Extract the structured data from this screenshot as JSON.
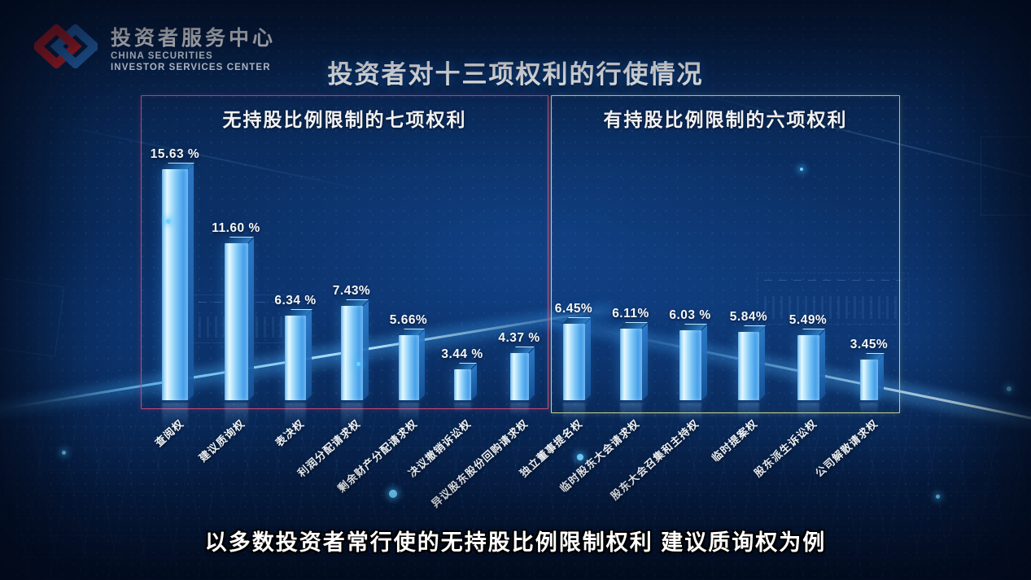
{
  "brand": {
    "logo_icon": "interlocked-links-logo",
    "name_zh": "投资者服务中心",
    "name_en_line1": "CHINA SECURITIES",
    "name_en_line2": "INVESTOR SERVICES CENTER"
  },
  "title": "投资者对十三项权利的行使情况",
  "subtitle": "以多数投资者常行使的无持股比例限制权利 建议质询权为例",
  "colors": {
    "background": "#0a2d5f",
    "bar_main": "#7ac4f6",
    "bar_highlight": "#e8f8ff",
    "beam": "#6fd2ff",
    "group1_border": "#c94a78",
    "group2_border": "#c9d48f",
    "logo_red": "#d5232b",
    "logo_blue": "#2a6fc0"
  },
  "chart_data": {
    "type": "bar",
    "title": "投资者对十三项权利的行使情况",
    "unit": "%",
    "ylim": [
      0,
      16
    ],
    "grid": false,
    "legend": false,
    "groups": [
      {
        "label": "无持股比例限制的七项权利",
        "border_color": "#c94a78",
        "categories": [
          "查阅权",
          "建议质询权",
          "表决权",
          "利润分配请求权",
          "剩余财产分配请求权",
          "决议撤销诉讼权",
          "异议股东股份回购请求权"
        ],
        "values": [
          15.63,
          11.6,
          6.34,
          7.43,
          5.66,
          3.44,
          4.37
        ],
        "value_labels": [
          "15.63 %",
          "11.60 %",
          "6.34 %",
          "7.43%",
          "5.66%",
          "3.44 %",
          "4.37 %"
        ]
      },
      {
        "label": "有持股比例限制的六项权利",
        "border_color": "#c9d48f",
        "categories": [
          "独立董事提名权",
          "临时股东大会请求权",
          "股东大会召集和主持权",
          "临时提案权",
          "股东派生诉讼权",
          "公司解散请求权"
        ],
        "values": [
          6.45,
          6.11,
          6.03,
          5.84,
          5.49,
          3.45
        ],
        "value_labels": [
          "6.45%",
          "6.11%",
          "6.03 %",
          "5.84%",
          "5.49%",
          "3.45%"
        ]
      }
    ]
  }
}
